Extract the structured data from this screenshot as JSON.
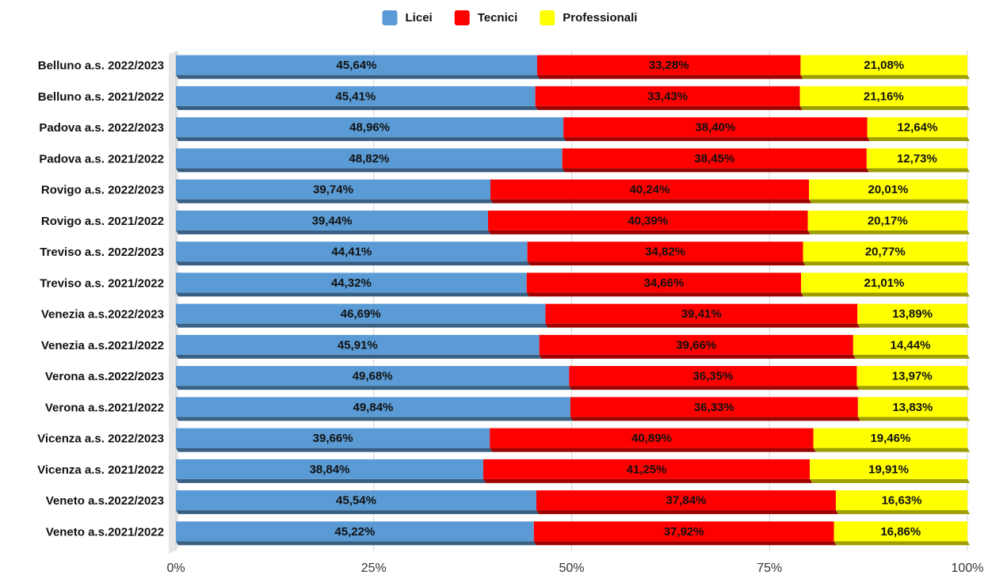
{
  "chart_data": {
    "type": "stacked_bar_horizontal",
    "categories": [
      "Belluno a.s. 2022/2023",
      "Belluno a.s. 2021/2022",
      "Padova a.s. 2022/2023",
      "Padova a.s. 2021/2022",
      "Rovigo a.s. 2022/2023",
      "Rovigo a.s. 2021/2022",
      "Treviso a.s. 2022/2023",
      "Treviso a.s. 2021/2022",
      "Venezia a.s.2022/2023",
      "Venezia a.s.2021/2022",
      "Verona a.s.2022/2023",
      "Verona a.s.2021/2022",
      "Vicenza a.s. 2022/2023",
      "Vicenza a.s. 2021/2022",
      "Veneto a.s.2022/2023",
      "Veneto a.s.2021/2022"
    ],
    "series": [
      {
        "name": "Licei",
        "color": "#5b9bd5",
        "values": [
          45.64,
          45.41,
          48.96,
          48.82,
          39.74,
          39.44,
          44.41,
          44.32,
          46.69,
          45.91,
          49.68,
          49.84,
          39.66,
          38.84,
          45.54,
          45.22
        ],
        "value_labels": [
          "45,64%",
          "45,41%",
          "48,96%",
          "48,82%",
          "39,74%",
          "39,44%",
          "44,41%",
          "44,32%",
          "46,69%",
          "45,91%",
          "49,68%",
          "49,84%",
          "39,66%",
          "38,84%",
          "45,54%",
          "45,22%"
        ]
      },
      {
        "name": "Tecnici",
        "color": "#ff0000",
        "values": [
          33.28,
          33.43,
          38.4,
          38.45,
          40.24,
          40.39,
          34.82,
          34.66,
          39.41,
          39.66,
          36.35,
          36.33,
          40.89,
          41.25,
          37.84,
          37.92
        ],
        "value_labels": [
          "33,28%",
          "33,43%",
          "38,40%",
          "38,45%",
          "40,24%",
          "40,39%",
          "34,82%",
          "34,66%",
          "39,41%",
          "39,66%",
          "36,35%",
          "36,33%",
          "40,89%",
          "41,25%",
          "37,84%",
          "37,92%"
        ]
      },
      {
        "name": "Professionali",
        "color": "#ffff00",
        "values": [
          21.08,
          21.16,
          12.64,
          12.73,
          20.01,
          20.17,
          20.77,
          21.01,
          13.89,
          14.44,
          13.97,
          13.83,
          19.46,
          19.91,
          16.63,
          16.86
        ],
        "value_labels": [
          "21,08%",
          "21,16%",
          "12,64%",
          "12,73%",
          "20,01%",
          "20,17%",
          "20,77%",
          "21,01%",
          "13,89%",
          "14,44%",
          "13,97%",
          "13,83%",
          "19,46%",
          "19,91%",
          "16,63%",
          "16,86%"
        ]
      }
    ],
    "xlim": [
      0,
      100
    ],
    "xticks": [
      {
        "value": 0,
        "label": "0%"
      },
      {
        "value": 25,
        "label": "25%"
      },
      {
        "value": 50,
        "label": "50%"
      },
      {
        "value": 75,
        "label": "75%"
      },
      {
        "value": 100,
        "label": "100%"
      }
    ],
    "grid": true,
    "legend": "top"
  }
}
